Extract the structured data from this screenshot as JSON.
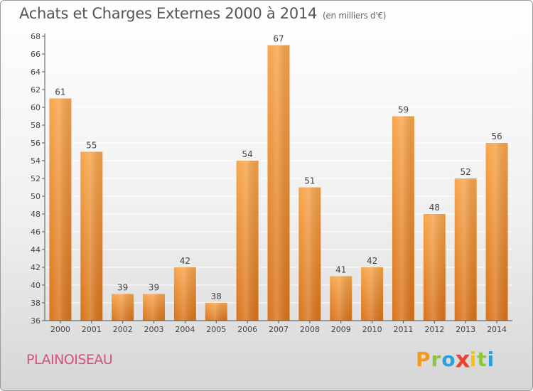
{
  "header": {
    "title": "Achats et Charges Externes 2000 à 2014",
    "unit": "(en milliers d'€)"
  },
  "footer": {
    "city": "PLAINOISEAU",
    "logo_letters": [
      "P",
      "r",
      "o",
      "x",
      "i",
      "t",
      "i"
    ],
    "logo_colors": [
      "#f29a1e",
      "#8cc63f",
      "#2a9fd8",
      "#e8452c",
      "#f6c300",
      "#8cc63f",
      "#2a9fd8"
    ]
  },
  "colors": {
    "bar_top": "#f7a54b",
    "bar_bottom": "#d9731a",
    "axis": "#555555",
    "grid": "#ffffff"
  },
  "chart_data": {
    "type": "bar",
    "title": "Achats et Charges Externes 2000 à 2014",
    "subtitle": "(en milliers d'€)",
    "categories": [
      "2000",
      "2001",
      "2002",
      "2003",
      "2004",
      "2005",
      "2006",
      "2007",
      "2008",
      "2009",
      "2010",
      "2011",
      "2012",
      "2013",
      "2014"
    ],
    "values": [
      61,
      55,
      39,
      39,
      42,
      38,
      54,
      67,
      51,
      41,
      42,
      59,
      48,
      52,
      56
    ],
    "ylim": [
      36,
      68
    ],
    "yticks": [
      36,
      38,
      40,
      42,
      44,
      46,
      48,
      50,
      52,
      54,
      56,
      58,
      60,
      62,
      64,
      66,
      68
    ],
    "grid": true,
    "xlabel": "",
    "ylabel": ""
  }
}
